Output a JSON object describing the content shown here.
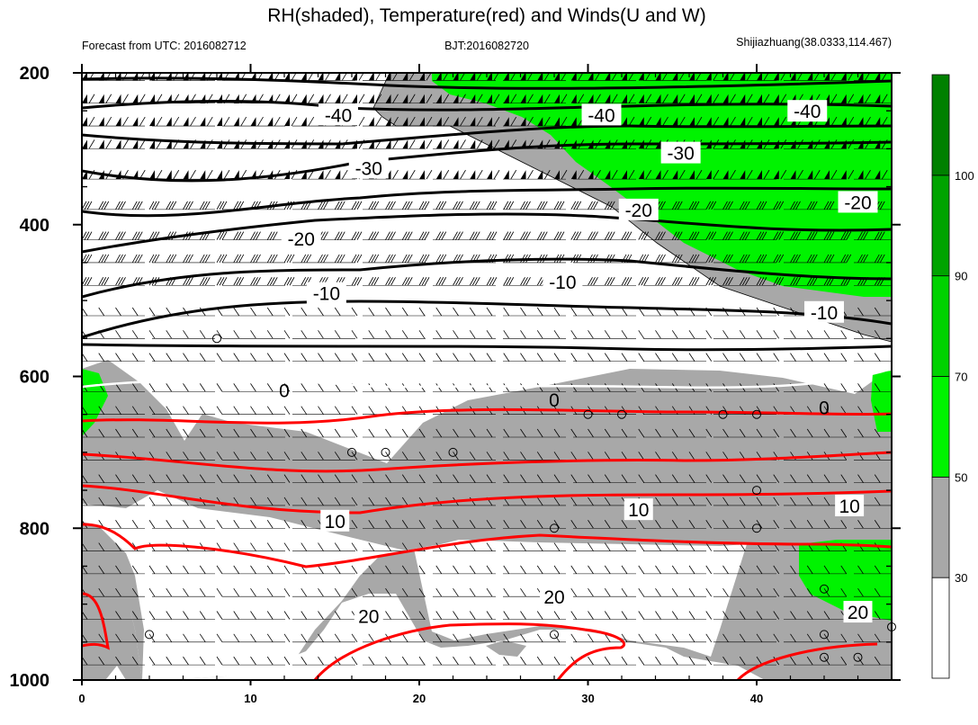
{
  "colors": {
    "gray": "#a8a8a8",
    "green_light": "#00f300",
    "green_mid": "#00d200",
    "green_dark": "#00a300",
    "green_darker": "#008000",
    "temperature_line": "#ff0000",
    "isotherm_black": "#000000"
  },
  "chart_data": {
    "type": "heatmap",
    "title": "RH(shaded), Temperature(red) and Winds(U and W)",
    "subtitle_left": "Forecast from UTC: 2016082712",
    "subtitle_center": "BJT:2016082720",
    "subtitle_right": "Shijiazhuang(38.0333,114.467)",
    "xlabel": "",
    "ylabel": "",
    "xlim": [
      0,
      48
    ],
    "ylim": [
      1000,
      200
    ],
    "x_ticks": [
      "0",
      "10",
      "20",
      "30",
      "40"
    ],
    "y_ticks": [
      "200",
      "400",
      "600",
      "800",
      "1000"
    ],
    "colorbar": {
      "levels": [
        "30",
        "50",
        "70",
        "90",
        "100"
      ],
      "colors": [
        "#ffffff",
        "#a8a8a8",
        "#00f300",
        "#00d200",
        "#00a300",
        "#008000"
      ]
    },
    "wind_levels_hpa": [
      210,
      240,
      270,
      300,
      340,
      380,
      420,
      450,
      480,
      520,
      550,
      580,
      620,
      650,
      680,
      710,
      740,
      770,
      800,
      830,
      860,
      890,
      920,
      950,
      980
    ],
    "temperature_isotherms": [
      {
        "value": -40,
        "color": "black",
        "labels": [
          {
            "x": 15.2,
            "p": 255
          },
          {
            "x": 30.8,
            "p": 255
          },
          {
            "x": 43,
            "p": 250
          }
        ]
      },
      {
        "value": -30,
        "color": "black",
        "labels": [
          {
            "x": 17,
            "p": 325
          },
          {
            "x": 35.5,
            "p": 305
          }
        ]
      },
      {
        "value": -20,
        "color": "black",
        "labels": [
          {
            "x": 13,
            "p": 418
          },
          {
            "x": 33,
            "p": 380
          },
          {
            "x": 46,
            "p": 370
          }
        ]
      },
      {
        "value": -10,
        "color": "black",
        "labels": [
          {
            "x": 14.5,
            "p": 490
          },
          {
            "x": 28.5,
            "p": 475
          },
          {
            "x": 44,
            "p": 515
          }
        ]
      },
      {
        "value": 0,
        "color": "black",
        "labels": [
          {
            "x": 12,
            "p": 618
          },
          {
            "x": 28,
            "p": 630
          },
          {
            "x": 44,
            "p": 640
          }
        ]
      },
      {
        "value": 10,
        "color": "red",
        "labels": [
          {
            "x": 15,
            "p": 790
          },
          {
            "x": 33,
            "p": 775
          },
          {
            "x": 45.5,
            "p": 770
          }
        ]
      },
      {
        "value": 20,
        "color": "red",
        "labels": [
          {
            "x": 17,
            "p": 915
          },
          {
            "x": 28,
            "p": 890
          },
          {
            "x": 46,
            "p": 910
          }
        ]
      }
    ]
  }
}
